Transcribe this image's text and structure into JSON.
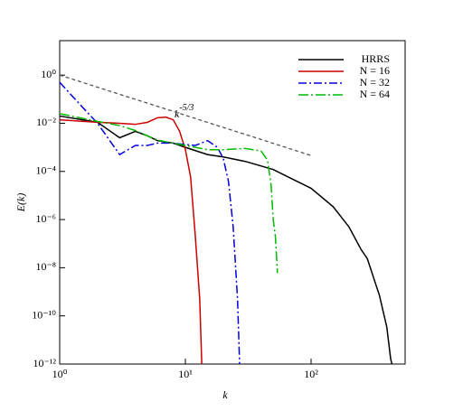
{
  "chart_data": {
    "type": "line",
    "xlabel": "k",
    "ylabel": "E(k)",
    "log_x": true,
    "log_y": true,
    "xlim": [
      1,
      560
    ],
    "ylim": [
      1e-12,
      27
    ],
    "xticks": [
      {
        "value": 1,
        "label": "10⁰"
      },
      {
        "value": 10,
        "label": "10¹"
      },
      {
        "value": 100,
        "label": "10²"
      }
    ],
    "yticks": [
      {
        "value": 1,
        "label": "10⁰"
      },
      {
        "value": 0.01,
        "label": "10⁻²"
      },
      {
        "value": 0.0001,
        "label": "10⁻⁴"
      },
      {
        "value": 1e-06,
        "label": "10⁻⁶"
      },
      {
        "value": 1e-08,
        "label": "10⁻⁸"
      },
      {
        "value": 1e-10,
        "label": "10⁻¹⁰"
      },
      {
        "value": 1e-12,
        "label": "10⁻¹²"
      }
    ],
    "reference_line": {
      "x": [
        1,
        100
      ],
      "y": [
        1,
        0.00046
      ],
      "color": "#555555"
    },
    "annotation": {
      "text": "k",
      "superscript": "-5/3"
    },
    "series": [
      {
        "name": "HRRS",
        "color": "#000000",
        "x": [
          1,
          2,
          3,
          4,
          5,
          6,
          8,
          10,
          15,
          20,
          30,
          50,
          70,
          100,
          150,
          200,
          250,
          280,
          350,
          400,
          430,
          440
        ],
        "values": [
          0.02,
          0.011,
          0.0025,
          0.0046,
          0.003,
          0.0019,
          0.0015,
          0.001,
          0.0005,
          0.0004,
          0.00026,
          0.00012,
          5e-05,
          2e-05,
          3.4e-06,
          5e-07,
          5.7e-08,
          2.4e-08,
          7e-10,
          3.5e-11,
          1.6e-12,
          1e-12
        ]
      },
      {
        "name": "N = 16",
        "color": "#cc0000",
        "x": [
          1,
          2,
          3,
          4,
          5,
          6,
          7,
          8,
          9,
          10,
          11,
          12,
          13,
          13.5
        ],
        "values": [
          0.014,
          0.011,
          0.01,
          0.009,
          0.011,
          0.017,
          0.018,
          0.014,
          0.0046,
          0.0008,
          6e-05,
          2e-07,
          5e-10,
          1e-12
        ]
      },
      {
        "name": "N = 32",
        "color": "#0000dd",
        "x": [
          1,
          1.5,
          2,
          3,
          4,
          5,
          6,
          8,
          10,
          12,
          15,
          18,
          20,
          22,
          24,
          26,
          27
        ],
        "values": [
          0.5,
          0.05,
          0.01,
          0.0005,
          0.0012,
          0.0012,
          0.0015,
          0.0015,
          0.0013,
          0.0012,
          0.0019,
          0.001,
          0.00035,
          4e-05,
          5e-07,
          5e-10,
          1e-12
        ]
      },
      {
        "name": "N = 64",
        "color": "#00bb00",
        "x": [
          1,
          2,
          3,
          4,
          5,
          6,
          8,
          10,
          15,
          20,
          30,
          40,
          45,
          48,
          50,
          52,
          54
        ],
        "values": [
          0.025,
          0.012,
          0.008,
          0.005,
          0.003,
          0.002,
          0.0015,
          0.0012,
          0.0008,
          0.0008,
          0.0009,
          0.0007,
          0.0003,
          3e-05,
          1e-06,
          2e-07,
          6e-09
        ]
      }
    ]
  }
}
